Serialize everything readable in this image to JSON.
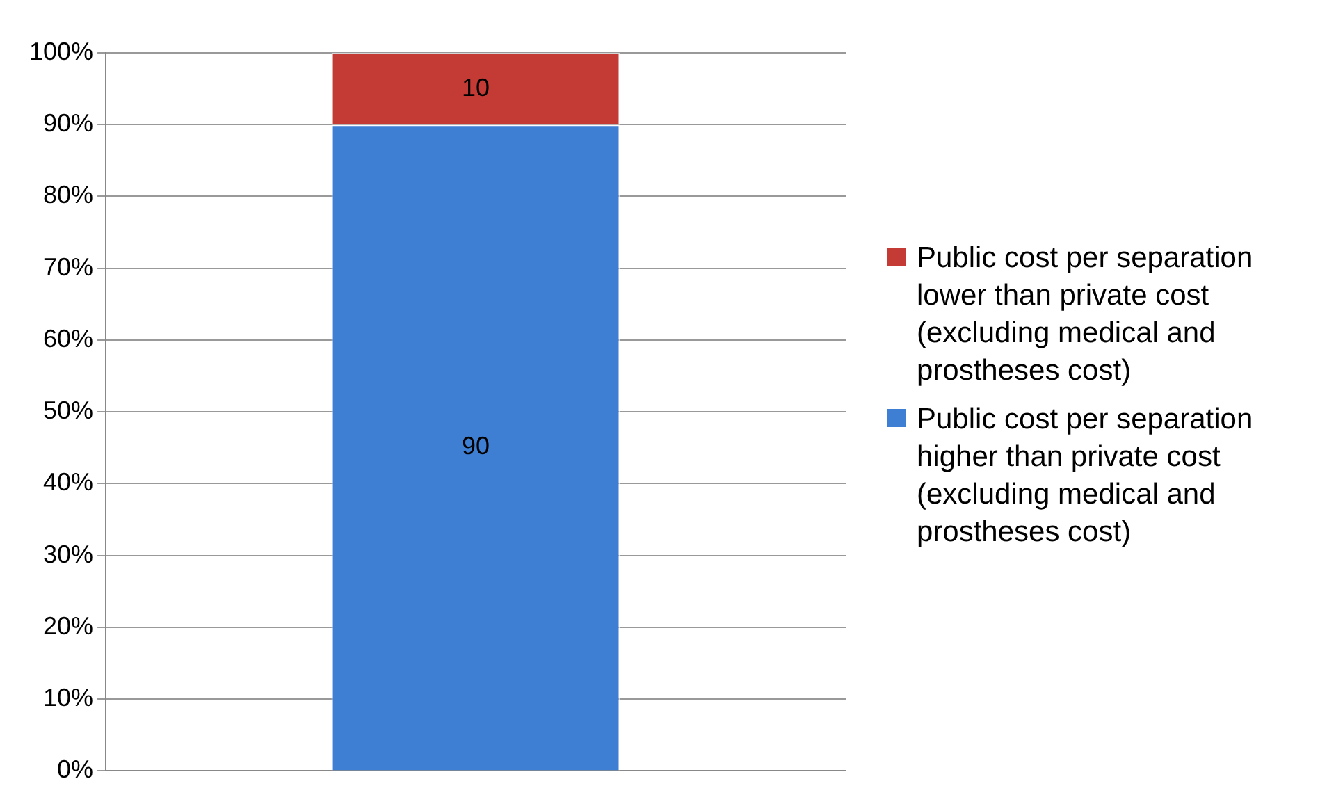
{
  "chart_data": {
    "type": "bar",
    "stacked": true,
    "categories": [
      null
    ],
    "series": [
      {
        "name": "Public cost per separation higher than private cost (excluding medical and prostheses cost)",
        "color": "#3f7fd3",
        "values": [
          90
        ]
      },
      {
        "name": "Public cost per separation lower than private cost (excluding medical and prostheses cost)",
        "color": "#c43b35",
        "values": [
          10
        ]
      }
    ],
    "ylim": [
      0,
      100
    ],
    "yticks": [
      {
        "value": 0,
        "label": "0%"
      },
      {
        "value": 10,
        "label": "10%"
      },
      {
        "value": 20,
        "label": "20%"
      },
      {
        "value": 30,
        "label": "30%"
      },
      {
        "value": 40,
        "label": "40%"
      },
      {
        "value": 50,
        "label": "50%"
      },
      {
        "value": 60,
        "label": "60%"
      },
      {
        "value": 70,
        "label": "70%"
      },
      {
        "value": 80,
        "label": "80%"
      },
      {
        "value": 90,
        "label": "90%"
      },
      {
        "value": 100,
        "label": "100%"
      }
    ],
    "grid": "y",
    "legend": "right",
    "data_labels": true
  }
}
